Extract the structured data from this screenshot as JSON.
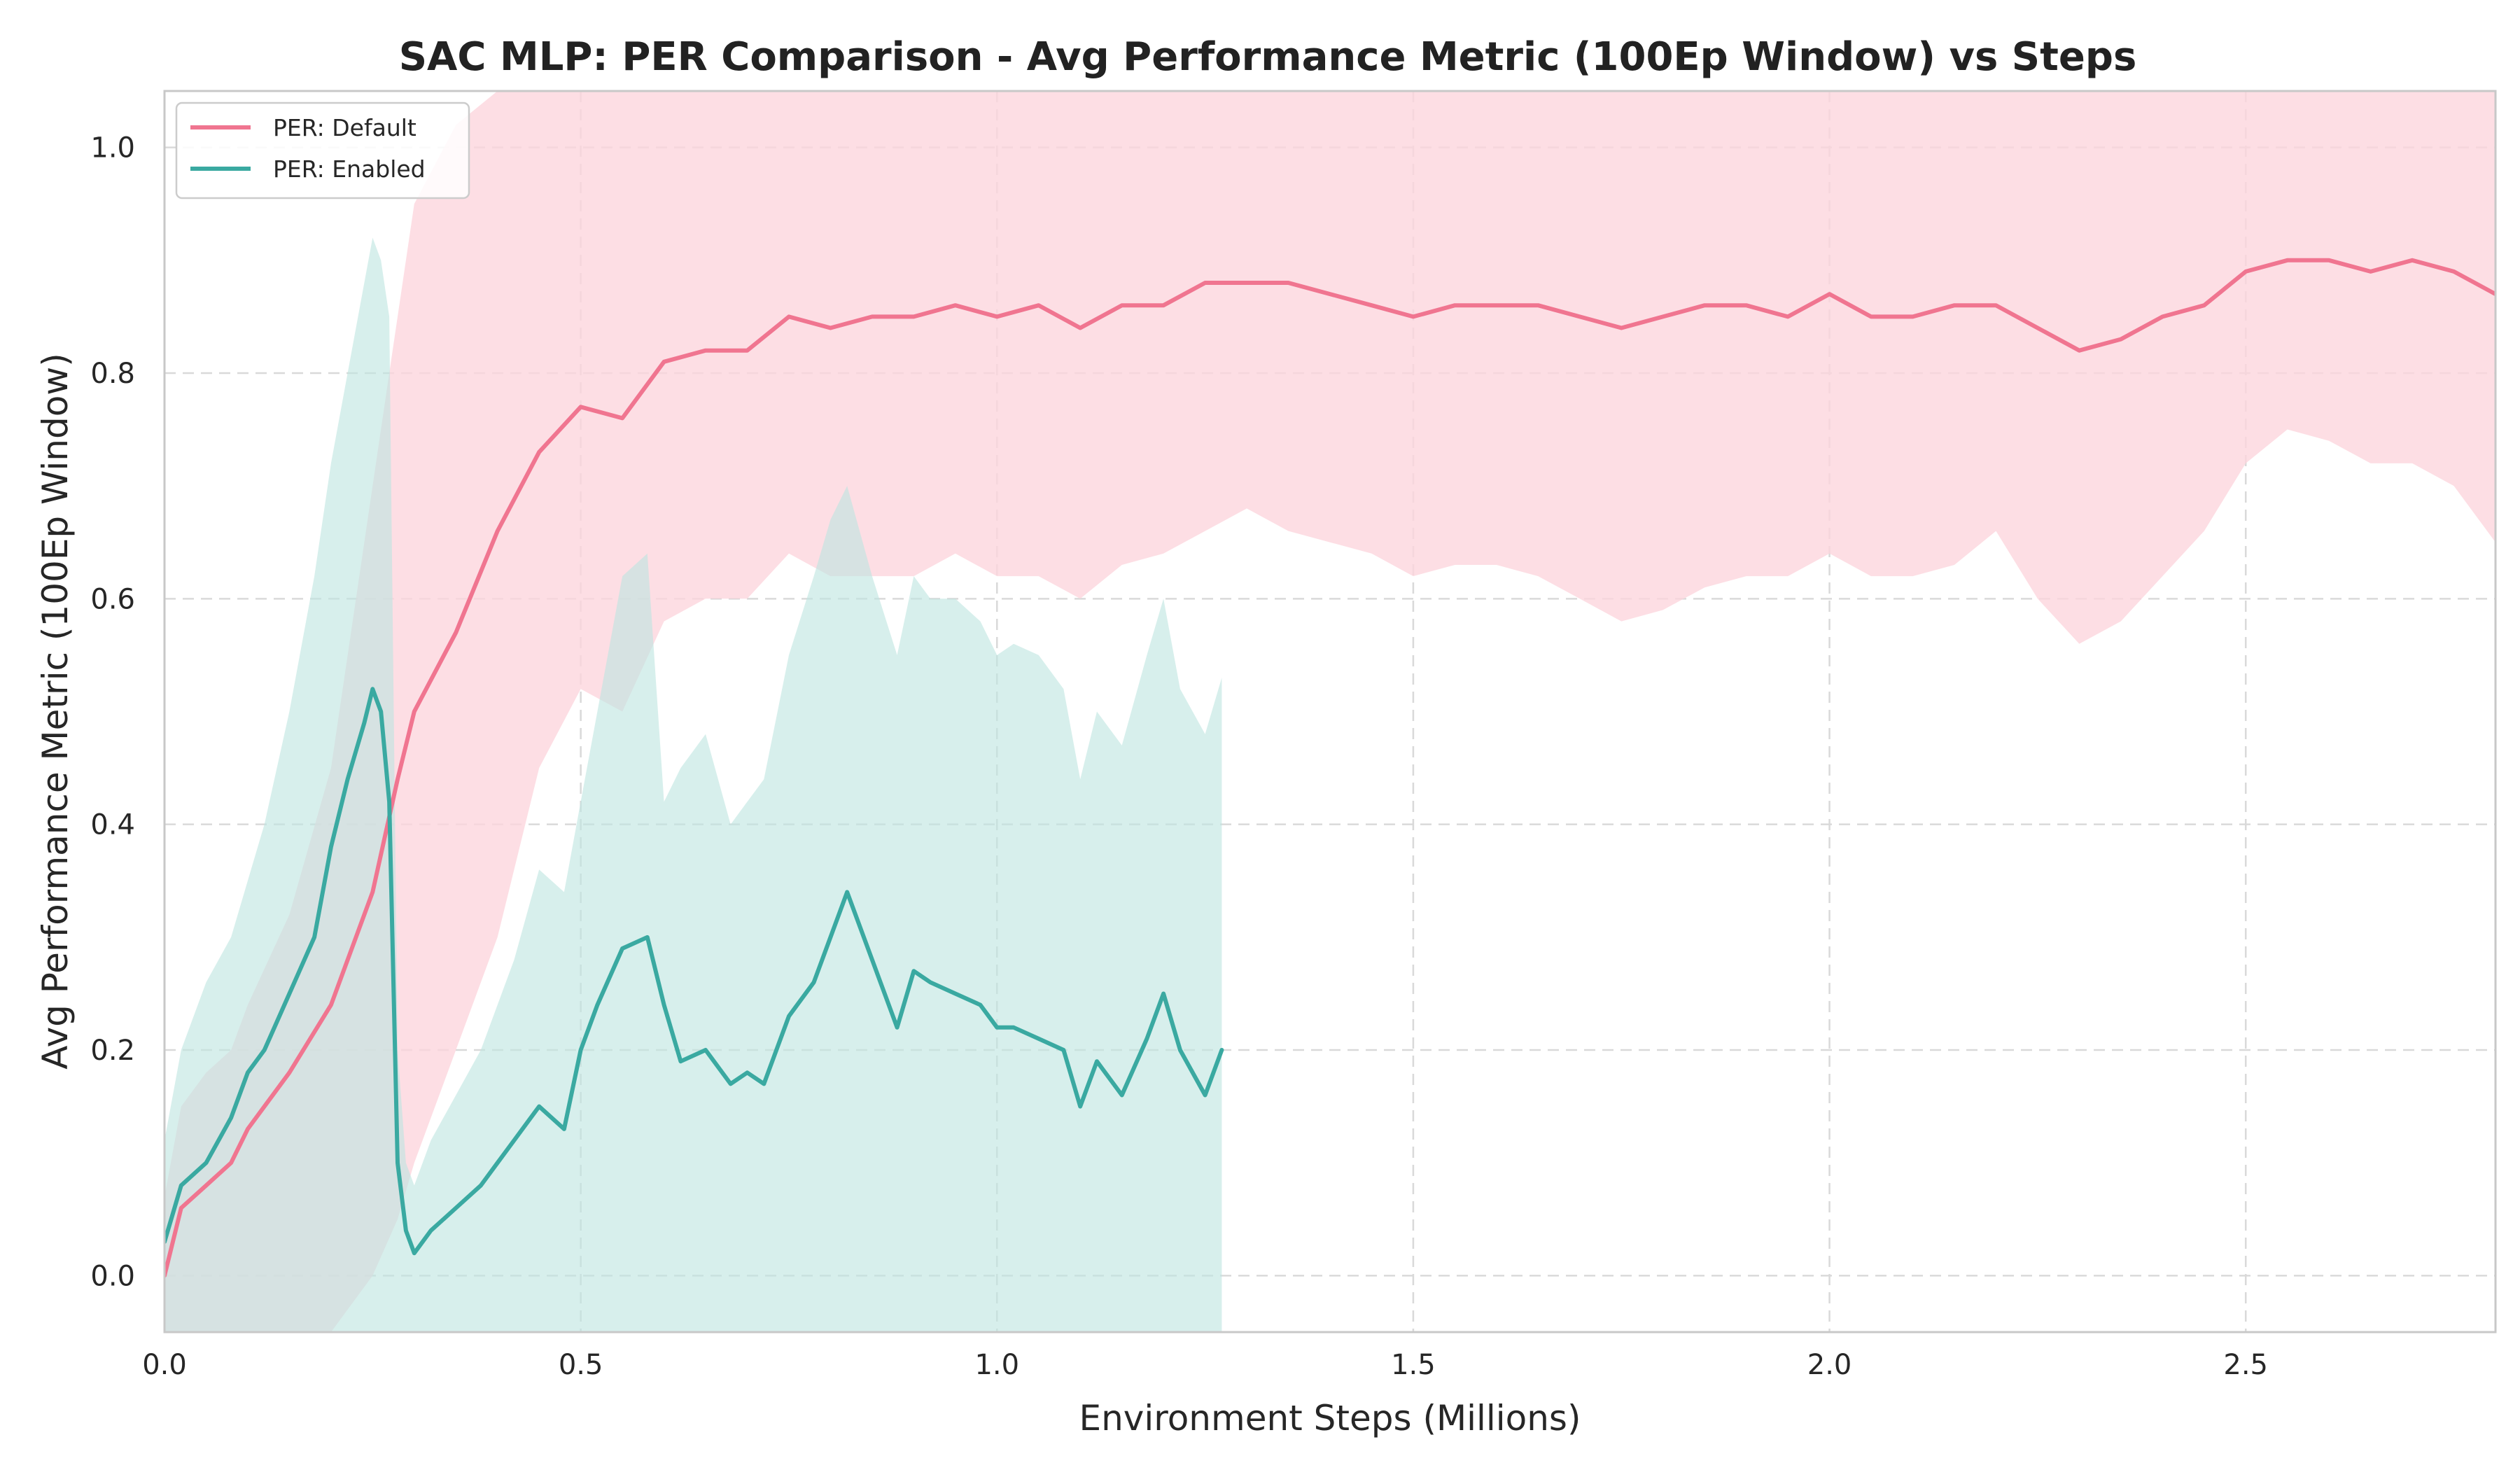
{
  "chart_data": {
    "type": "line",
    "title": "SAC MLP: PER Comparison - Avg Performance Metric (100Ep Window) vs Steps",
    "xlabel": "Environment Steps (Millions)",
    "ylabel": "Avg Performance Metric (100Ep Window)",
    "xlim": [
      0,
      2.8
    ],
    "ylim": [
      -0.05,
      1.05
    ],
    "x_ticks": [
      0.0,
      0.5,
      1.0,
      1.5,
      2.0,
      2.5
    ],
    "x_tick_labels": [
      "0.0",
      "0.5",
      "1.0",
      "1.5",
      "2.0",
      "2.5"
    ],
    "y_ticks": [
      0.0,
      0.2,
      0.4,
      0.6,
      0.8,
      1.0
    ],
    "y_tick_labels": [
      "0.0",
      "0.2",
      "0.4",
      "0.6",
      "0.8",
      "1.0"
    ],
    "grid": true,
    "legend_position": "top-left",
    "series": [
      {
        "name": "PER: Default",
        "color": "#f07590",
        "band_color": "#fcd5dd",
        "x": [
          0.0,
          0.02,
          0.05,
          0.08,
          0.1,
          0.15,
          0.2,
          0.25,
          0.28,
          0.3,
          0.35,
          0.4,
          0.45,
          0.5,
          0.55,
          0.6,
          0.65,
          0.7,
          0.75,
          0.8,
          0.85,
          0.9,
          0.95,
          1.0,
          1.05,
          1.1,
          1.15,
          1.2,
          1.25,
          1.3,
          1.35,
          1.4,
          1.45,
          1.5,
          1.55,
          1.6,
          1.65,
          1.7,
          1.75,
          1.8,
          1.85,
          1.9,
          1.95,
          2.0,
          2.05,
          2.1,
          2.15,
          2.2,
          2.25,
          2.3,
          2.35,
          2.4,
          2.45,
          2.5,
          2.55,
          2.6,
          2.65,
          2.7,
          2.75,
          2.8
        ],
        "mean": [
          0.0,
          0.06,
          0.08,
          0.1,
          0.13,
          0.18,
          0.24,
          0.34,
          0.44,
          0.5,
          0.57,
          0.66,
          0.73,
          0.77,
          0.76,
          0.81,
          0.82,
          0.82,
          0.85,
          0.84,
          0.85,
          0.85,
          0.86,
          0.85,
          0.86,
          0.84,
          0.86,
          0.86,
          0.88,
          0.88,
          0.88,
          0.87,
          0.86,
          0.85,
          0.86,
          0.86,
          0.86,
          0.85,
          0.84,
          0.85,
          0.86,
          0.86,
          0.85,
          0.87,
          0.85,
          0.85,
          0.86,
          0.86,
          0.84,
          0.82,
          0.83,
          0.85,
          0.86,
          0.89,
          0.9,
          0.9,
          0.89,
          0.9,
          0.89,
          0.87
        ],
        "upper": [
          0.07,
          0.15,
          0.18,
          0.2,
          0.24,
          0.32,
          0.45,
          0.7,
          0.85,
          0.95,
          1.02,
          1.05,
          1.05,
          1.06,
          1.06,
          1.06,
          1.06,
          1.06,
          1.05,
          1.05,
          1.05,
          1.06,
          1.06,
          1.06,
          1.06,
          1.06,
          1.06,
          1.06,
          1.06,
          1.06,
          1.06,
          1.06,
          1.06,
          1.06,
          1.06,
          1.06,
          1.06,
          1.06,
          1.06,
          1.06,
          1.06,
          1.06,
          1.06,
          1.06,
          1.06,
          1.06,
          1.06,
          1.06,
          1.06,
          1.06,
          1.06,
          1.06,
          1.06,
          1.06,
          1.06,
          1.06,
          1.06,
          1.06,
          1.06,
          1.06
        ],
        "lower": [
          -0.06,
          -0.06,
          -0.06,
          -0.06,
          -0.06,
          -0.06,
          -0.05,
          0.0,
          0.05,
          0.1,
          0.2,
          0.3,
          0.45,
          0.52,
          0.5,
          0.58,
          0.6,
          0.6,
          0.64,
          0.62,
          0.62,
          0.62,
          0.64,
          0.62,
          0.62,
          0.6,
          0.63,
          0.64,
          0.66,
          0.68,
          0.66,
          0.65,
          0.64,
          0.62,
          0.63,
          0.63,
          0.62,
          0.6,
          0.58,
          0.59,
          0.61,
          0.62,
          0.62,
          0.64,
          0.62,
          0.62,
          0.63,
          0.66,
          0.6,
          0.56,
          0.58,
          0.62,
          0.66,
          0.72,
          0.75,
          0.74,
          0.72,
          0.72,
          0.7,
          0.65
        ]
      },
      {
        "name": "PER: Enabled",
        "color": "#3aa9a1",
        "band_color": "#bfe5e0",
        "x": [
          0.0,
          0.02,
          0.05,
          0.08,
          0.1,
          0.12,
          0.15,
          0.18,
          0.2,
          0.22,
          0.24,
          0.25,
          0.26,
          0.27,
          0.28,
          0.29,
          0.3,
          0.32,
          0.35,
          0.38,
          0.4,
          0.42,
          0.45,
          0.48,
          0.5,
          0.52,
          0.55,
          0.58,
          0.6,
          0.62,
          0.65,
          0.68,
          0.7,
          0.72,
          0.75,
          0.78,
          0.8,
          0.82,
          0.85,
          0.88,
          0.9,
          0.92,
          0.95,
          0.98,
          1.0,
          1.02,
          1.05,
          1.08,
          1.1,
          1.12,
          1.15,
          1.18,
          1.2,
          1.22,
          1.25,
          1.27
        ],
        "mean": [
          0.03,
          0.08,
          0.1,
          0.14,
          0.18,
          0.2,
          0.25,
          0.3,
          0.38,
          0.44,
          0.49,
          0.52,
          0.5,
          0.42,
          0.1,
          0.04,
          0.02,
          0.04,
          0.06,
          0.08,
          0.1,
          0.12,
          0.15,
          0.13,
          0.2,
          0.24,
          0.29,
          0.3,
          0.24,
          0.19,
          0.2,
          0.17,
          0.18,
          0.17,
          0.23,
          0.26,
          0.3,
          0.34,
          0.28,
          0.22,
          0.27,
          0.26,
          0.25,
          0.24,
          0.22,
          0.22,
          0.21,
          0.2,
          0.15,
          0.19,
          0.16,
          0.21,
          0.25,
          0.2,
          0.16,
          0.2
        ],
        "upper": [
          0.12,
          0.2,
          0.26,
          0.3,
          0.35,
          0.4,
          0.5,
          0.62,
          0.72,
          0.8,
          0.88,
          0.92,
          0.9,
          0.85,
          0.2,
          0.1,
          0.08,
          0.12,
          0.16,
          0.2,
          0.24,
          0.28,
          0.36,
          0.34,
          0.42,
          0.5,
          0.62,
          0.64,
          0.42,
          0.45,
          0.48,
          0.4,
          0.42,
          0.44,
          0.55,
          0.62,
          0.67,
          0.7,
          0.62,
          0.55,
          0.62,
          0.6,
          0.6,
          0.58,
          0.55,
          0.56,
          0.55,
          0.52,
          0.44,
          0.5,
          0.47,
          0.55,
          0.6,
          0.52,
          0.48,
          0.53
        ],
        "lower": [
          -0.06,
          -0.06,
          -0.06,
          -0.06,
          -0.06,
          -0.06,
          -0.06,
          -0.06,
          -0.06,
          -0.06,
          -0.06,
          -0.06,
          -0.06,
          -0.06,
          -0.06,
          -0.06,
          -0.06,
          -0.06,
          -0.06,
          -0.06,
          -0.06,
          -0.06,
          -0.06,
          -0.06,
          -0.06,
          -0.06,
          -0.06,
          -0.06,
          -0.06,
          -0.06,
          -0.06,
          -0.06,
          -0.06,
          -0.06,
          -0.06,
          -0.06,
          -0.06,
          -0.06,
          -0.06,
          -0.06,
          -0.06,
          -0.06,
          -0.06,
          -0.06,
          -0.06,
          -0.06,
          -0.06,
          -0.06,
          -0.06,
          -0.06,
          -0.06,
          -0.06,
          -0.06,
          -0.06,
          -0.06,
          -0.06
        ]
      }
    ]
  }
}
